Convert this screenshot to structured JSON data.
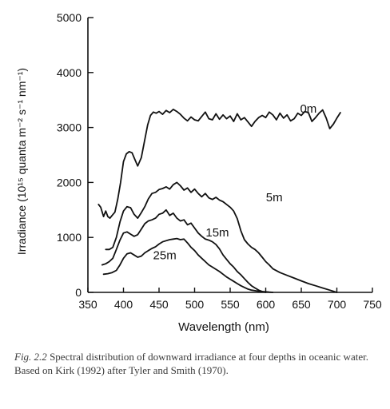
{
  "chart_data": {
    "type": "line",
    "title": "",
    "xlabel": "Wavelength (nm)",
    "ylabel": "Irradiance (10¹⁵ quanta m⁻² s⁻¹ nm⁻¹)",
    "xlim": [
      350,
      750
    ],
    "ylim": [
      0,
      5000
    ],
    "xticks": [
      350,
      400,
      450,
      500,
      550,
      600,
      650,
      700,
      750
    ],
    "yticks": [
      0,
      1000,
      2000,
      3000,
      4000,
      5000
    ],
    "grid": false,
    "series": [
      {
        "name": "0m",
        "label_at": [
          660,
          3270
        ],
        "x": [
          365,
          368,
          372,
          375,
          378,
          381,
          384,
          388,
          392,
          396,
          400,
          404,
          408,
          412,
          416,
          420,
          425,
          430,
          434,
          438,
          442,
          446,
          450,
          455,
          460,
          465,
          470,
          475,
          480,
          485,
          490,
          495,
          500,
          505,
          510,
          515,
          520,
          525,
          530,
          535,
          540,
          545,
          550,
          555,
          560,
          565,
          570,
          575,
          580,
          585,
          590,
          595,
          600,
          605,
          610,
          615,
          620,
          625,
          630,
          635,
          640,
          645,
          650,
          655,
          660,
          665,
          670,
          675,
          680,
          685,
          690,
          695,
          700,
          705
        ],
        "y": [
          1600,
          1550,
          1380,
          1480,
          1380,
          1350,
          1400,
          1460,
          1700,
          2000,
          2380,
          2520,
          2560,
          2540,
          2420,
          2300,
          2450,
          2780,
          3050,
          3220,
          3280,
          3260,
          3290,
          3240,
          3310,
          3270,
          3330,
          3290,
          3240,
          3170,
          3120,
          3190,
          3140,
          3120,
          3200,
          3280,
          3160,
          3140,
          3250,
          3150,
          3230,
          3160,
          3210,
          3110,
          3250,
          3140,
          3180,
          3100,
          3020,
          3110,
          3180,
          3220,
          3180,
          3280,
          3230,
          3140,
          3260,
          3170,
          3230,
          3120,
          3160,
          3260,
          3220,
          3290,
          3270,
          3110,
          3180,
          3260,
          3320,
          3170,
          2980,
          3060,
          3170,
          3270
        ]
      },
      {
        "name": "5m",
        "label_at": [
          612,
          1660
        ],
        "x": [
          375,
          380,
          385,
          390,
          395,
          400,
          405,
          410,
          415,
          420,
          425,
          430,
          435,
          440,
          445,
          450,
          455,
          460,
          465,
          470,
          475,
          480,
          485,
          490,
          495,
          500,
          505,
          510,
          515,
          520,
          525,
          530,
          535,
          540,
          545,
          550,
          555,
          560,
          565,
          570,
          575,
          580,
          585,
          590,
          595,
          600,
          605,
          610,
          620,
          630,
          640,
          650,
          660,
          670,
          680,
          690,
          700
        ],
        "y": [
          780,
          780,
          820,
          1000,
          1280,
          1480,
          1560,
          1540,
          1420,
          1350,
          1450,
          1560,
          1700,
          1800,
          1820,
          1870,
          1890,
          1920,
          1880,
          1960,
          2000,
          1940,
          1860,
          1900,
          1820,
          1880,
          1800,
          1740,
          1800,
          1720,
          1690,
          1730,
          1680,
          1650,
          1600,
          1550,
          1480,
          1340,
          1120,
          960,
          880,
          820,
          780,
          720,
          640,
          560,
          500,
          430,
          360,
          310,
          260,
          210,
          160,
          120,
          80,
          40,
          0
        ]
      },
      {
        "name": "15m",
        "label_at": [
          532,
          1020
        ],
        "x": [
          370,
          375,
          380,
          385,
          390,
          395,
          400,
          405,
          410,
          415,
          420,
          425,
          430,
          435,
          440,
          445,
          450,
          455,
          460,
          465,
          470,
          475,
          480,
          485,
          490,
          495,
          500,
          505,
          510,
          515,
          520,
          525,
          530,
          535,
          540,
          545,
          550,
          555,
          560,
          565,
          570,
          575,
          580,
          585,
          590,
          595,
          600
        ],
        "y": [
          500,
          520,
          560,
          620,
          780,
          950,
          1080,
          1100,
          1060,
          1020,
          1050,
          1150,
          1250,
          1300,
          1320,
          1350,
          1420,
          1440,
          1500,
          1400,
          1440,
          1350,
          1300,
          1320,
          1230,
          1260,
          1170,
          1080,
          1020,
          970,
          950,
          920,
          870,
          790,
          680,
          600,
          520,
          460,
          380,
          320,
          250,
          180,
          120,
          80,
          40,
          15,
          0
        ]
      },
      {
        "name": "25m",
        "label_at": [
          458,
          600
        ],
        "x": [
          372,
          378,
          384,
          390,
          395,
          400,
          405,
          410,
          415,
          420,
          425,
          430,
          435,
          440,
          445,
          450,
          455,
          460,
          465,
          470,
          475,
          480,
          485,
          490,
          495,
          500,
          505,
          510,
          515,
          520,
          525,
          530,
          535,
          540,
          545,
          550,
          555,
          560,
          565,
          570,
          575,
          580,
          585,
          590,
          595,
          600,
          605,
          610
        ],
        "y": [
          330,
          340,
          360,
          400,
          500,
          620,
          700,
          720,
          680,
          640,
          660,
          720,
          760,
          800,
          830,
          880,
          920,
          940,
          960,
          970,
          980,
          960,
          970,
          900,
          820,
          760,
          680,
          620,
          560,
          500,
          460,
          420,
          380,
          330,
          280,
          240,
          200,
          160,
          120,
          90,
          60,
          40,
          30,
          20,
          15,
          10,
          5,
          0
        ]
      }
    ]
  },
  "caption": {
    "fig_no": "Fig. 2.2",
    "text": "Spectral distribution of downward irradiance at four depths in oceanic water. Based on Kirk (1992) after Tyler and Smith (1970)."
  }
}
